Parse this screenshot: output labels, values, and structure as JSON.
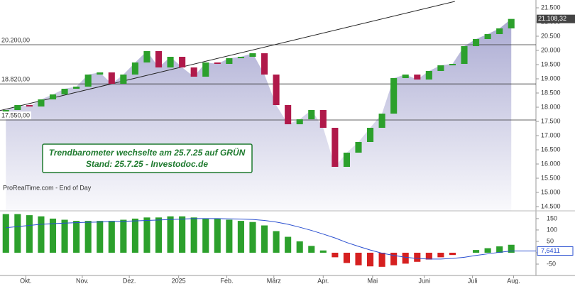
{
  "chart_data": {
    "type": "candlestick",
    "source": "ProRealTime.com - End of Day",
    "annotation": [
      "Trendbarometer wechselte am 25.7.25 auf GRÜN",
      "Stand: 25.7.25 - Investodoc.de"
    ],
    "x": [
      0,
      1,
      2,
      3,
      4,
      5,
      6,
      7,
      8,
      9,
      10,
      11,
      12,
      13,
      14,
      15,
      16,
      17,
      18,
      19,
      20,
      21,
      22,
      23,
      24,
      25,
      26,
      27,
      28,
      29,
      30,
      31,
      32,
      33,
      34,
      35,
      36,
      37,
      38,
      39,
      40,
      41,
      42,
      43
    ],
    "xlim": [
      -0.5,
      45.1
    ],
    "xticks": [
      {
        "value": 1.7,
        "label": "Okt."
      },
      {
        "value": 6.5,
        "label": "Nov."
      },
      {
        "value": 10.5,
        "label": "Dez."
      },
      {
        "value": 14.7,
        "label": "2025"
      },
      {
        "value": 18.8,
        "label": "Feb."
      },
      {
        "value": 22.8,
        "label": "März"
      },
      {
        "value": 27.0,
        "label": "Apr."
      },
      {
        "value": 31.2,
        "label": "Mai"
      },
      {
        "value": 35.6,
        "label": "Juni"
      },
      {
        "value": 39.7,
        "label": "Juli"
      },
      {
        "value": 43.2,
        "label": "Aug."
      }
    ],
    "open": [
      17800,
      17900,
      18075,
      18025,
      18275,
      18450,
      18650,
      18725,
      19150,
      19225,
      18825,
      19150,
      19575,
      19975,
      19400,
      19775,
      19400,
      19075,
      19575,
      19525,
      19725,
      19775,
      19900,
      19150,
      18075,
      17400,
      17575,
      17900,
      17275,
      15900,
      16400,
      16775,
      17275,
      17775,
      19025,
      19150,
      18975,
      19275,
      19475,
      19525,
      20150,
      20400,
      20575,
      20775
    ],
    "close": [
      17900,
      18075,
      18025,
      18275,
      18450,
      18650,
      18725,
      19150,
      19225,
      18825,
      19150,
      19575,
      19975,
      19400,
      19775,
      19400,
      19075,
      19575,
      19525,
      19725,
      19775,
      19900,
      19150,
      18075,
      17400,
      17575,
      17900,
      17275,
      15900,
      16400,
      16775,
      17275,
      17775,
      19025,
      19150,
      18975,
      19275,
      19475,
      19525,
      20150,
      20400,
      20575,
      20775,
      21108.32
    ],
    "up_color": "#2ca02c",
    "down_color": "#b0194a",
    "area_color": "#8f8fc4",
    "ylim": [
      14350,
      21775
    ],
    "yticks": [
      {
        "value": 14500,
        "label": "14.500"
      },
      {
        "value": 15000,
        "label": "15.000"
      },
      {
        "value": 15500,
        "label": "15.500"
      },
      {
        "value": 16000,
        "label": "16.000"
      },
      {
        "value": 16500,
        "label": "16.500"
      },
      {
        "value": 17000,
        "label": "17.000"
      },
      {
        "value": 17500,
        "label": "17.500"
      },
      {
        "value": 18000,
        "label": "18.000"
      },
      {
        "value": 18500,
        "label": "18.500"
      },
      {
        "value": 19000,
        "label": "19.000"
      },
      {
        "value": 19500,
        "label": "19.500"
      },
      {
        "value": 20000,
        "label": "20.000"
      },
      {
        "value": 20500,
        "label": "20.500"
      },
      {
        "value": 21000,
        "label": "21.000"
      },
      {
        "value": 21500,
        "label": "21.500"
      }
    ],
    "last_price": {
      "value": 21108.32,
      "label": "21.108,32"
    },
    "levels": [
      {
        "value": 20200,
        "label": "20.200,00"
      },
      {
        "value": 18820,
        "label": "18.820,00"
      },
      {
        "value": 17550,
        "label": "17.550,00"
      }
    ],
    "trendline": {
      "x": [
        -0.5,
        38.2
      ],
      "y": [
        17880,
        21725
      ]
    },
    "indicator": {
      "histogram": [
        170,
        170,
        165,
        160,
        150,
        145,
        140,
        140,
        140,
        140,
        145,
        150,
        155,
        155,
        160,
        160,
        155,
        150,
        150,
        145,
        140,
        135,
        120,
        95,
        70,
        50,
        30,
        10,
        -20,
        -45,
        -55,
        -60,
        -62,
        -55,
        -48,
        -40,
        -30,
        -20,
        -10,
        0,
        12,
        20,
        28,
        35
      ],
      "pos_color": "#2ca02c",
      "neg_color": "#d62020",
      "line": [
        110,
        115,
        120,
        125,
        128,
        130,
        132,
        134,
        135,
        137,
        138,
        140,
        142,
        144,
        146,
        148,
        150,
        150,
        150,
        149,
        148,
        146,
        142,
        135,
        125,
        112,
        98,
        82,
        65,
        45,
        28,
        12,
        -2,
        -12,
        -20,
        -25,
        -28,
        -28,
        -25,
        -20,
        -12,
        -5,
        2,
        7.6411
      ],
      "line_color": "#2a4fd0",
      "last": {
        "value": 7.6411,
        "label": "7,6411"
      },
      "ylim": [
        -100,
        184
      ],
      "yticks": [
        -50,
        0,
        50,
        100,
        150
      ]
    }
  }
}
